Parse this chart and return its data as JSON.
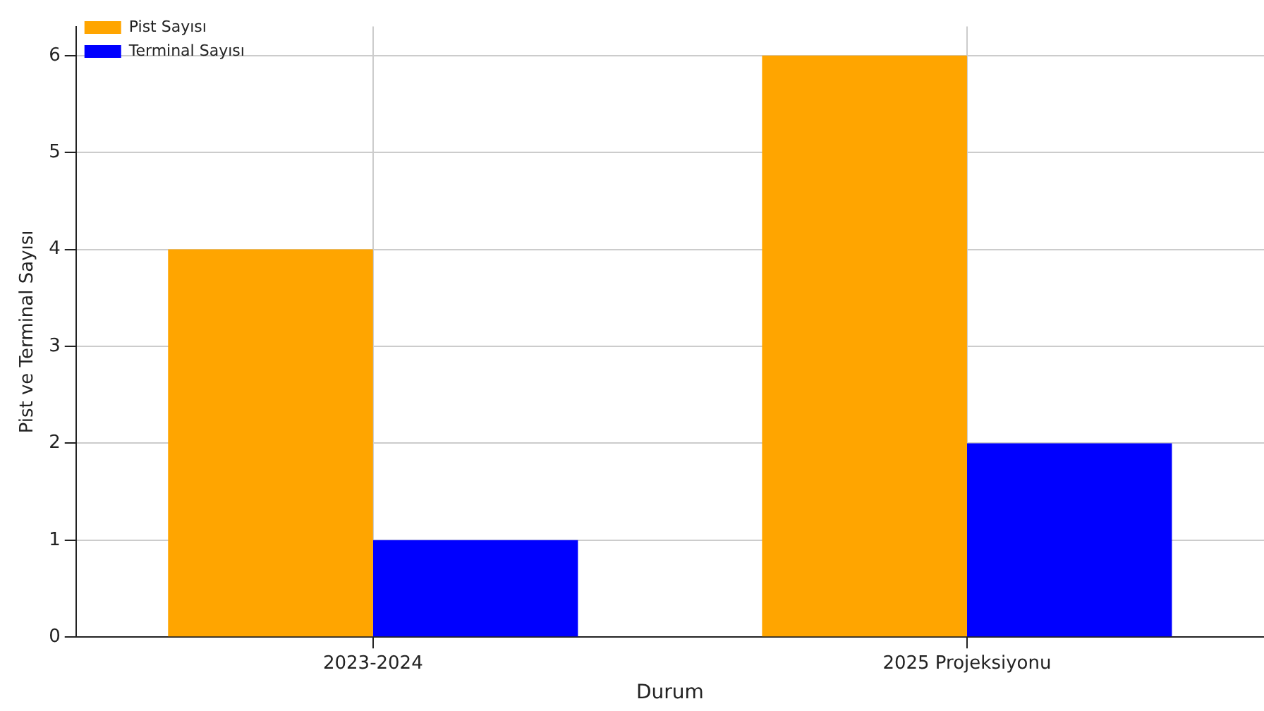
{
  "chart_data": {
    "type": "bar",
    "xlabel": "Durum",
    "ylabel": "Pist ve Terminal Sayısı",
    "categories": [
      "2023-2024",
      "2025 Projeksiyonu"
    ],
    "series": [
      {
        "name": "Pist Sayısı",
        "color": "#ffa500",
        "values": [
          4,
          6
        ]
      },
      {
        "name": "Terminal Sayısı",
        "color": "#0000ff",
        "values": [
          1,
          2
        ]
      }
    ],
    "ylim": [
      0,
      6.3
    ],
    "yticks": [
      0,
      1,
      2,
      3,
      4,
      5,
      6
    ],
    "grid": true,
    "legend": "top left"
  }
}
